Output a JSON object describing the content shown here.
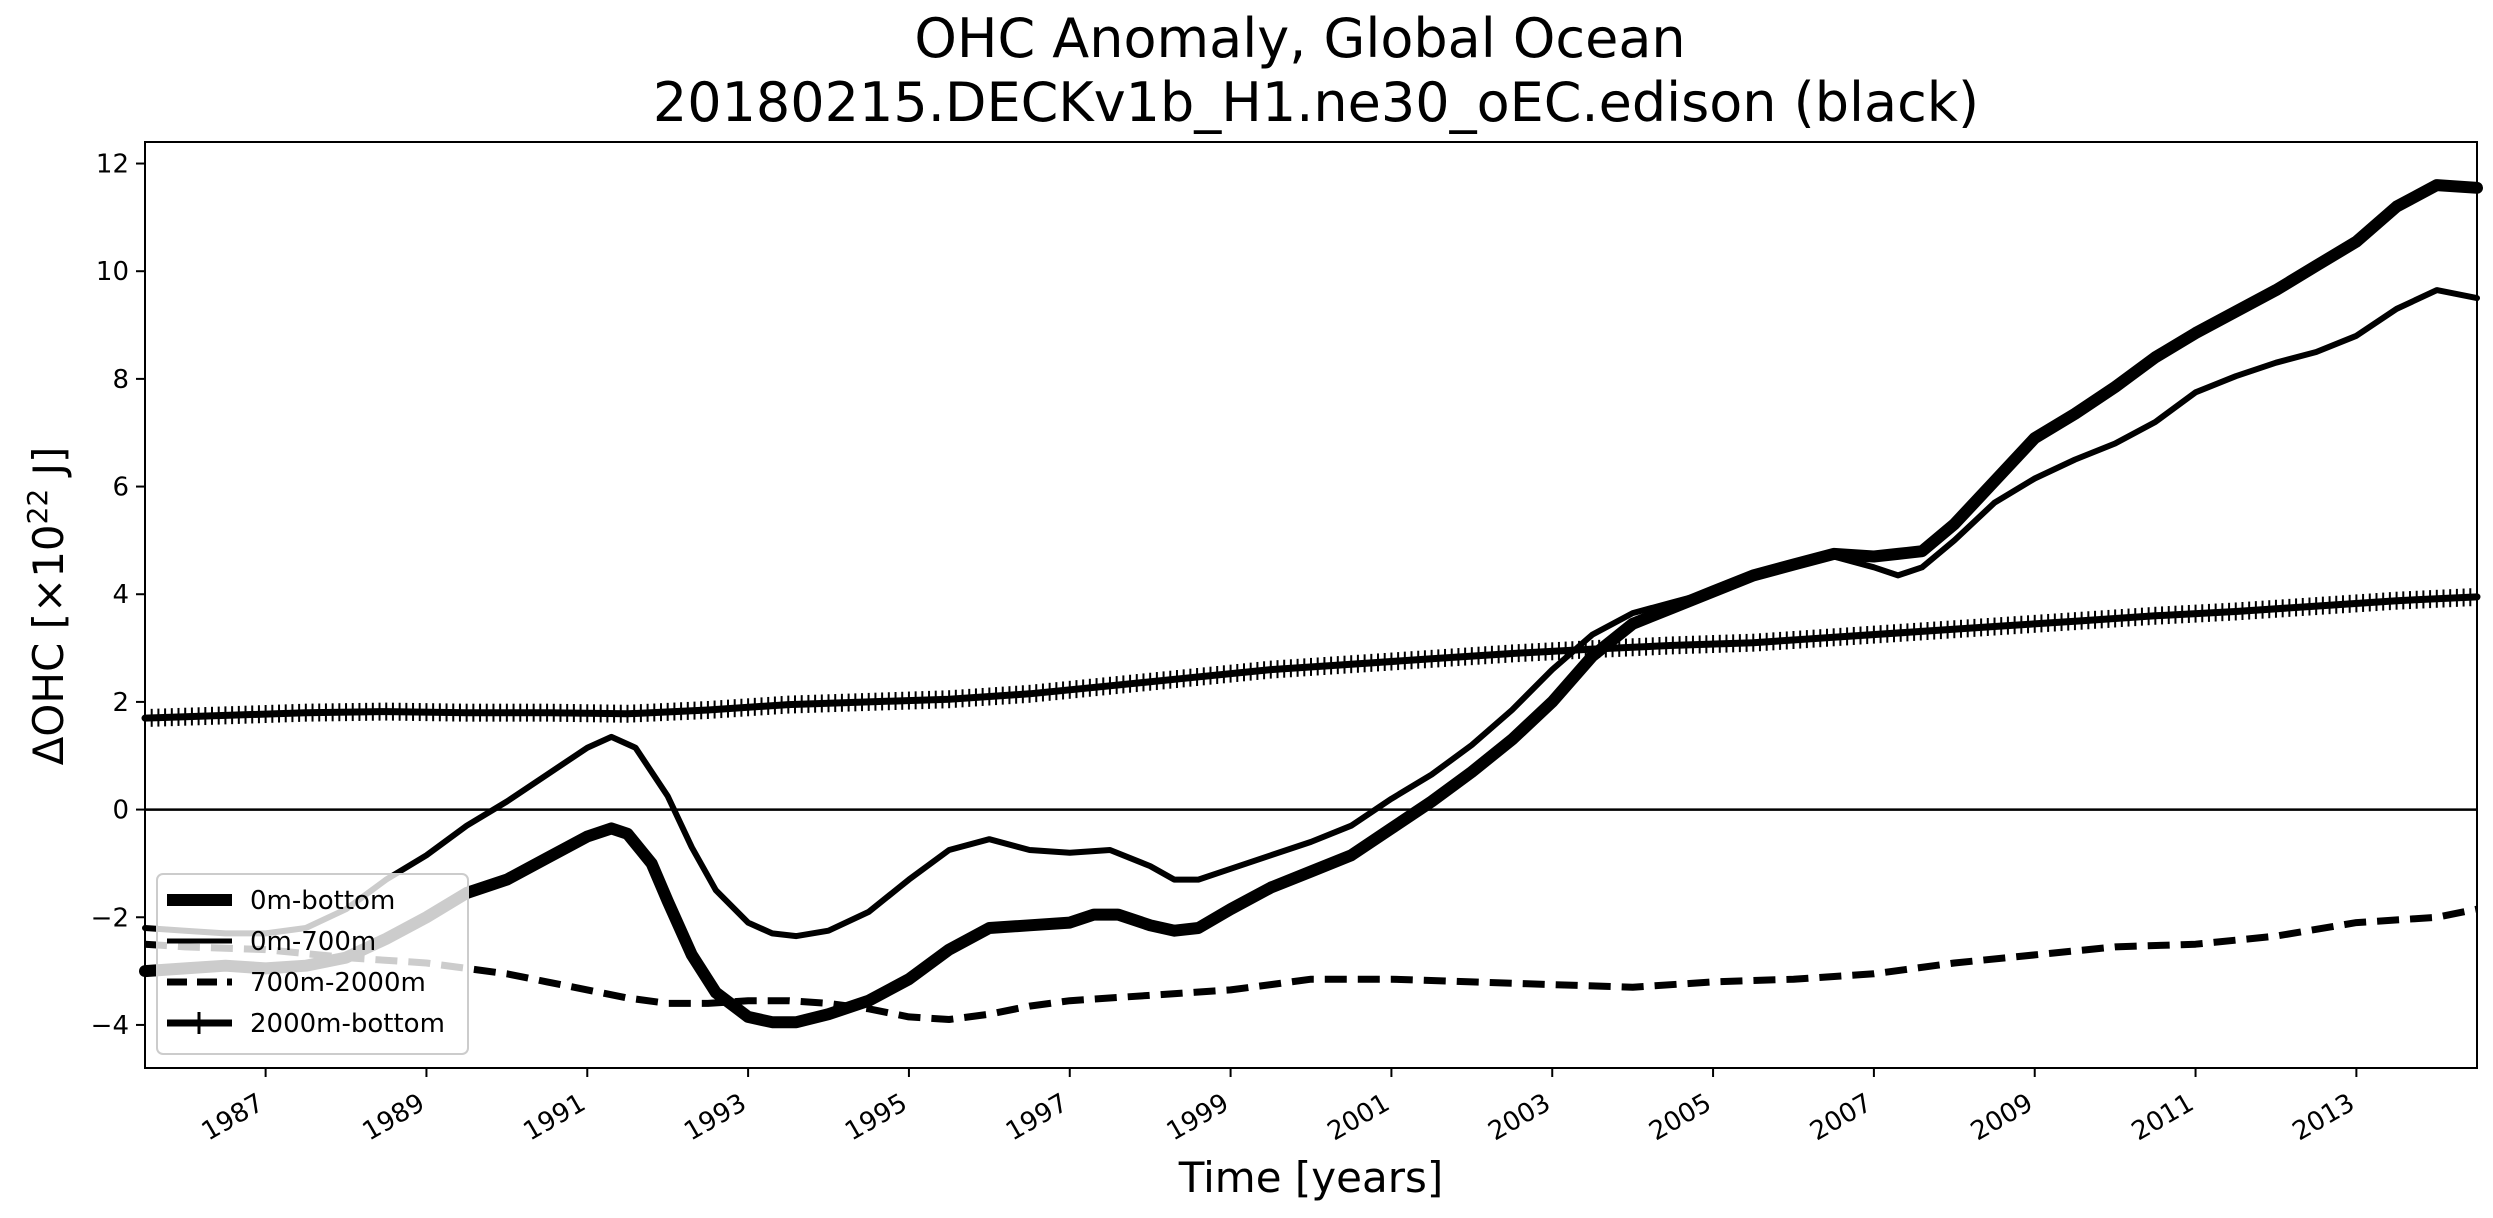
{
  "chart_data": {
    "type": "line",
    "title_line1": "OHC Anomaly, Global Ocean",
    "title_line2": "20180215.DECKv1b_H1.ne30_oEC.edison (black)",
    "xlabel": "Time [years]",
    "ylabel_main": "ΔOHC [×10",
    "ylabel_exp": "22",
    "ylabel_unit": " J]",
    "xlim": [
      1985.5,
      2014.5
    ],
    "ylim": [
      -4.8,
      12.4
    ],
    "x_ticks": [
      1987,
      1989,
      1991,
      1993,
      1995,
      1997,
      1999,
      2001,
      2003,
      2005,
      2007,
      2009,
      2011,
      2013
    ],
    "x_tick_labels": [
      "1987",
      "1989",
      "1991",
      "1993",
      "1995",
      "1997",
      "1999",
      "2001",
      "2003",
      "2005",
      "2007",
      "2009",
      "2011",
      "2013"
    ],
    "y_ticks": [
      -4,
      -2,
      0,
      2,
      4,
      6,
      8,
      10,
      12
    ],
    "y_tick_labels": [
      "−4",
      "−2",
      "0",
      "2",
      "4",
      "6",
      "8",
      "10",
      "12"
    ],
    "zero_line": 0,
    "legend_location": "lower-left",
    "series": [
      {
        "name": "0m-bottom",
        "style": "thick-solid",
        "color": "#000000",
        "x": [
          1985.5,
          1986.0,
          1986.5,
          1987.0,
          1987.5,
          1988.0,
          1988.5,
          1989.0,
          1989.5,
          1990.0,
          1990.5,
          1991.0,
          1991.3,
          1991.5,
          1991.8,
          1992.0,
          1992.3,
          1992.6,
          1993.0,
          1993.3,
          1993.6,
          1994.0,
          1994.5,
          1995.0,
          1995.5,
          1996.0,
          1996.5,
          1997.0,
          1997.3,
          1997.6,
          1998.0,
          1998.3,
          1998.6,
          1999.0,
          1999.5,
          2000.0,
          2000.5,
          2001.0,
          2001.5,
          2002.0,
          2002.5,
          2003.0,
          2003.5,
          2004.0,
          2004.5,
          2005.0,
          2005.5,
          2006.0,
          2006.5,
          2007.0,
          2007.3,
          2007.6,
          2008.0,
          2008.5,
          2009.0,
          2009.5,
          2010.0,
          2010.5,
          2011.0,
          2011.5,
          2012.0,
          2012.5,
          2013.0,
          2013.5,
          2014.0,
          2014.5
        ],
        "values": [
          -3.0,
          -2.95,
          -2.9,
          -2.95,
          -2.9,
          -2.75,
          -2.4,
          -2.0,
          -1.55,
          -1.3,
          -0.9,
          -0.5,
          -0.35,
          -0.45,
          -1.0,
          -1.7,
          -2.7,
          -3.4,
          -3.85,
          -3.95,
          -3.95,
          -3.8,
          -3.55,
          -3.15,
          -2.6,
          -2.2,
          -2.15,
          -2.1,
          -1.95,
          -1.95,
          -2.15,
          -2.25,
          -2.2,
          -1.85,
          -1.45,
          -1.15,
          -0.85,
          -0.35,
          0.15,
          0.7,
          1.3,
          2.0,
          2.85,
          3.45,
          3.75,
          4.05,
          4.35,
          4.55,
          4.75,
          4.7,
          4.75,
          4.8,
          5.3,
          6.1,
          6.9,
          7.35,
          7.85,
          8.4,
          8.85,
          9.25,
          9.65,
          10.1,
          10.55,
          11.2,
          11.6,
          11.55
        ]
      },
      {
        "name": "0m-700m",
        "style": "solid",
        "color": "#000000",
        "x": [
          1985.5,
          1986.0,
          1986.5,
          1987.0,
          1987.5,
          1988.0,
          1988.5,
          1989.0,
          1989.5,
          1990.0,
          1990.5,
          1991.0,
          1991.3,
          1991.6,
          1992.0,
          1992.3,
          1992.6,
          1993.0,
          1993.3,
          1993.6,
          1994.0,
          1994.5,
          1995.0,
          1995.5,
          1996.0,
          1996.5,
          1997.0,
          1997.5,
          1998.0,
          1998.3,
          1998.6,
          1999.0,
          1999.5,
          2000.0,
          2000.5,
          2001.0,
          2001.5,
          2002.0,
          2002.5,
          2003.0,
          2003.5,
          2004.0,
          2004.5,
          2005.0,
          2005.5,
          2006.0,
          2006.5,
          2007.0,
          2007.3,
          2007.6,
          2008.0,
          2008.5,
          2009.0,
          2009.5,
          2010.0,
          2010.5,
          2011.0,
          2011.5,
          2012.0,
          2012.5,
          2013.0,
          2013.5,
          2014.0,
          2014.5
        ],
        "values": [
          -2.2,
          -2.25,
          -2.3,
          -2.3,
          -2.2,
          -1.85,
          -1.3,
          -0.85,
          -0.3,
          0.15,
          0.65,
          1.15,
          1.35,
          1.15,
          0.25,
          -0.7,
          -1.5,
          -2.1,
          -2.3,
          -2.35,
          -2.25,
          -1.9,
          -1.3,
          -0.75,
          -0.55,
          -0.75,
          -0.8,
          -0.75,
          -1.05,
          -1.3,
          -1.3,
          -1.1,
          -0.85,
          -0.6,
          -0.3,
          0.2,
          0.65,
          1.2,
          1.85,
          2.6,
          3.25,
          3.65,
          3.85,
          4.05,
          4.35,
          4.55,
          4.7,
          4.5,
          4.35,
          4.5,
          5.0,
          5.7,
          6.15,
          6.5,
          6.8,
          7.2,
          7.75,
          8.05,
          8.3,
          8.5,
          8.8,
          9.3,
          9.65,
          9.5
        ]
      },
      {
        "name": "700m-2000m",
        "style": "dashed",
        "color": "#000000",
        "x": [
          1985.5,
          1986.0,
          1987.0,
          1988.0,
          1989.0,
          1990.0,
          1990.5,
          1991.0,
          1991.5,
          1992.0,
          1992.5,
          1993.0,
          1993.5,
          1994.0,
          1994.5,
          1995.0,
          1995.5,
          1996.0,
          1996.5,
          1997.0,
          1998.0,
          1999.0,
          1999.5,
          2000.0,
          2001.0,
          2002.0,
          2003.0,
          2004.0,
          2005.0,
          2006.0,
          2007.0,
          2008.0,
          2009.0,
          2010.0,
          2011.0,
          2012.0,
          2013.0,
          2014.0,
          2014.5
        ],
        "values": [
          -2.5,
          -2.55,
          -2.6,
          -2.75,
          -2.85,
          -3.05,
          -3.2,
          -3.35,
          -3.5,
          -3.6,
          -3.6,
          -3.55,
          -3.55,
          -3.6,
          -3.7,
          -3.85,
          -3.9,
          -3.8,
          -3.65,
          -3.55,
          -3.45,
          -3.35,
          -3.25,
          -3.15,
          -3.15,
          -3.2,
          -3.25,
          -3.3,
          -3.2,
          -3.15,
          -3.05,
          -2.85,
          -2.7,
          -2.55,
          -2.5,
          -2.35,
          -2.1,
          -2.0,
          -1.85
        ]
      },
      {
        "name": "2000m-bottom",
        "style": "solid-plus",
        "color": "#000000",
        "x": [
          1985.5,
          1986.5,
          1987.5,
          1988.5,
          1989.5,
          1990.5,
          1991.5,
          1992.5,
          1993.5,
          1994.5,
          1995.5,
          1996.5,
          1997.5,
          1998.5,
          1999.5,
          2000.5,
          2001.5,
          2002.5,
          2003.5,
          2004.5,
          2005.5,
          2006.5,
          2007.5,
          2008.5,
          2009.5,
          2010.5,
          2011.5,
          2012.5,
          2013.5,
          2014.5
        ],
        "values": [
          1.7,
          1.75,
          1.8,
          1.82,
          1.8,
          1.8,
          1.78,
          1.85,
          1.95,
          2.0,
          2.05,
          2.15,
          2.3,
          2.45,
          2.6,
          2.7,
          2.8,
          2.9,
          2.98,
          3.05,
          3.1,
          3.2,
          3.3,
          3.4,
          3.5,
          3.6,
          3.68,
          3.78,
          3.88,
          3.95
        ]
      }
    ],
    "legend_items": [
      "0m-bottom",
      "0m-700m",
      "700m-2000m",
      "2000m-bottom"
    ]
  }
}
